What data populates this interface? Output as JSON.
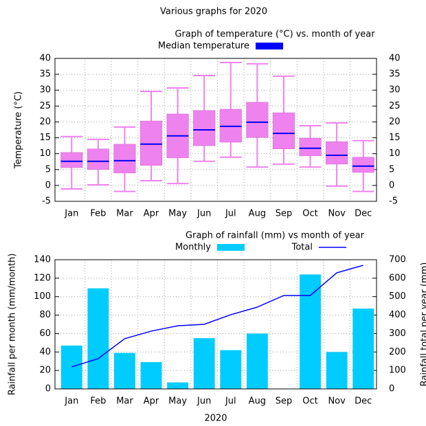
{
  "title": "Various graphs for 2020",
  "chart_data": [
    {
      "type": "box",
      "title": "Graph of temperature (°C) vs. month of year",
      "ylabel": "Temperature (°C)",
      "categories": [
        "Jan",
        "Feb",
        "Mar",
        "Apr",
        "May",
        "Jun",
        "Jul",
        "Aug",
        "Sep",
        "Oct",
        "Nov",
        "Dec"
      ],
      "min": [
        -1.1,
        0.2,
        -1.9,
        1.5,
        0.6,
        7.6,
        8.9,
        5.8,
        6.7,
        5.8,
        -0.2,
        -1.9
      ],
      "q1": [
        5.6,
        5.0,
        3.9,
        6.3,
        8.7,
        12.5,
        13.6,
        15.1,
        11.5,
        9.3,
        6.7,
        4.1
      ],
      "q3": [
        10.4,
        11.5,
        13.0,
        20.3,
        22.5,
        23.6,
        24.0,
        26.2,
        22.9,
        14.9,
        13.8,
        8.9
      ],
      "max": [
        15.4,
        14.5,
        18.4,
        29.6,
        30.7,
        34.6,
        38.7,
        38.3,
        34.4,
        18.8,
        19.7,
        14.1
      ],
      "box_color": "#ee82ee",
      "series": [
        {
          "name": "Median temperature",
          "color": "#0000ff",
          "values": [
            7.6,
            7.6,
            7.8,
            13.0,
            15.6,
            17.5,
            18.6,
            19.9,
            16.4,
            11.7,
            9.5,
            6.1
          ]
        }
      ],
      "ylim": [
        -5,
        40
      ],
      "yticks": [
        -5,
        0,
        5,
        10,
        15,
        20,
        25,
        30,
        35,
        40
      ],
      "y2lim": [
        -5,
        40
      ],
      "y2ticks": [
        -5,
        0,
        5,
        10,
        15,
        20,
        25,
        30,
        35,
        40
      ],
      "grid": true
    },
    {
      "type": "bar",
      "title": "Graph of rainfall (mm) vs month of year",
      "xlabel": "2020",
      "ylabel": "Rainfall per month (mm/month)",
      "y2label": "Rainfall total per year (mm)",
      "categories": [
        "Jan",
        "Feb",
        "Mar",
        "Apr",
        "May",
        "Jun",
        "Jul",
        "Aug",
        "Sep",
        "Oct",
        "Nov",
        "Dec"
      ],
      "series": [
        {
          "name": "Monthly",
          "color": "#00ccff",
          "values": [
            47,
            109,
            39,
            29,
            7,
            55,
            42,
            60,
            0,
            124,
            40,
            87
          ]
        },
        {
          "name": "Total",
          "color": "#0000ff",
          "axis": "y2",
          "values": [
            119,
            164,
            272,
            313,
            342,
            350,
            402,
            443,
            506,
            506,
            629,
            670
          ]
        }
      ],
      "ylim": [
        0,
        140
      ],
      "yticks": [
        0,
        20,
        40,
        60,
        80,
        100,
        120,
        140
      ],
      "y2lim": [
        0,
        700
      ],
      "y2ticks": [
        0,
        100,
        200,
        300,
        400,
        500,
        600,
        700
      ],
      "grid": true
    }
  ]
}
